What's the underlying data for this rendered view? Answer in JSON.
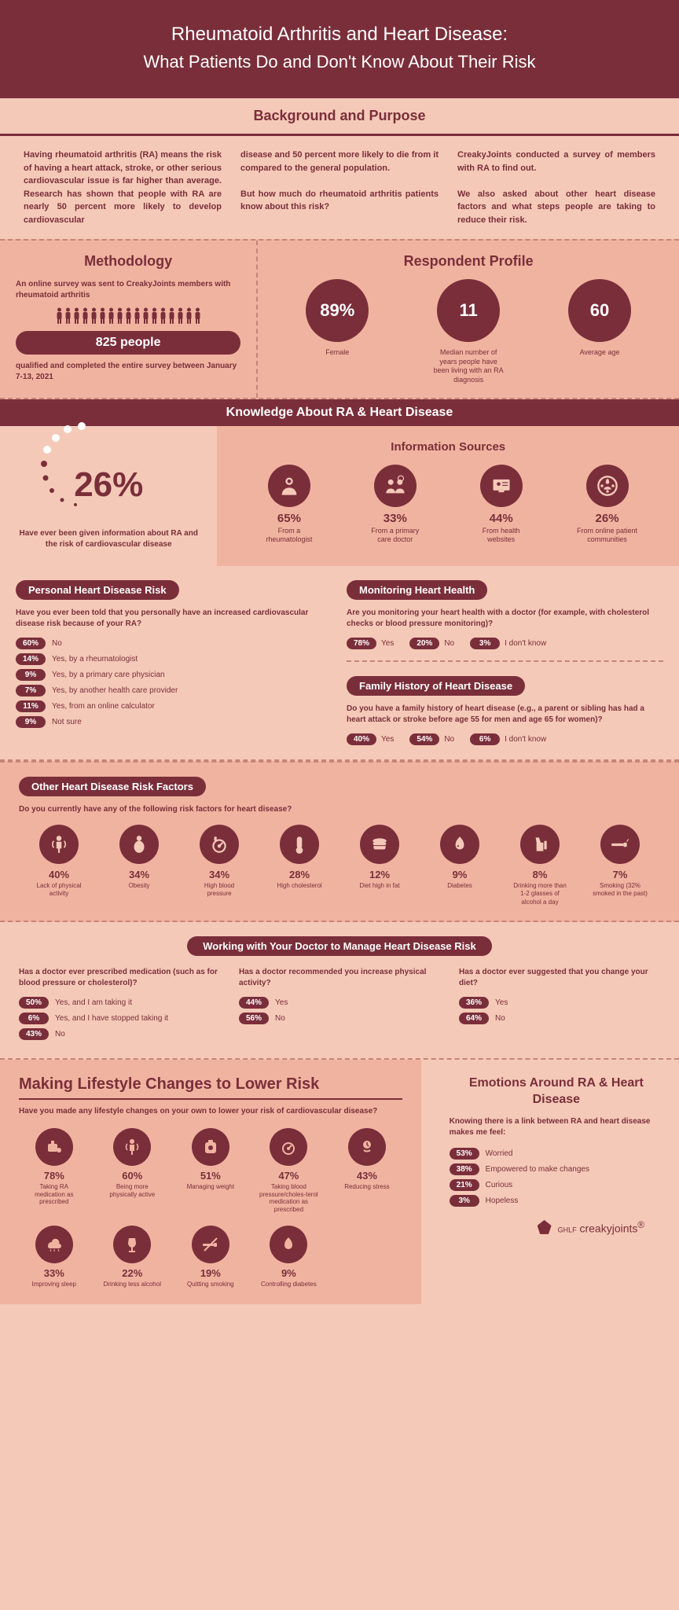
{
  "header": {
    "line1": "Rheumatoid Arthritis and Heart Disease:",
    "line2": "What Patients Do and Don't Know About Their Risk"
  },
  "background": {
    "title": "Background and Purpose",
    "col1": "Having rheumatoid arthritis (RA) means the risk of having a heart attack, stroke, or other serious cardiovascular issue is far higher than average. Research has shown that people with RA are nearly 50 percent more likely to develop cardiovascular",
    "col2": "disease and 50 percent more likely to die from it compared to the general population.\n\nBut how much do rheumatoid arthritis patients know about this risk?",
    "col3": "CreakyJoints conducted a survey of members with RA to find out.\n\nWe also asked about other heart disease factors and what steps people are taking to reduce their risk."
  },
  "methodology": {
    "title": "Methodology",
    "intro": "An online survey was sent to CreakyJoints members with rheumatoid arthritis",
    "count": "825 people",
    "note": "qualified and completed the entire survey between January 7-13, 2021"
  },
  "profile": {
    "title": "Respondent Profile",
    "stats": [
      {
        "value": "89%",
        "label": "Female"
      },
      {
        "value": "11",
        "label": "Median number of years people have been living with an RA diagnosis"
      },
      {
        "value": "60",
        "label": "Average age"
      }
    ]
  },
  "knowledge": {
    "title": "Knowledge About RA & Heart Disease",
    "main_pct": "26%",
    "main_text": "Have ever been given information about RA and the risk of cardiovascular disease",
    "sources_title": "Information Sources",
    "sources": [
      {
        "pct": "65%",
        "label": "From a rheumatologist"
      },
      {
        "pct": "33%",
        "label": "From a primary care doctor"
      },
      {
        "pct": "44%",
        "label": "From health websites"
      },
      {
        "pct": "26%",
        "label": "From online patient communities"
      }
    ]
  },
  "personal_risk": {
    "title": "Personal Heart Disease Risk",
    "question": "Have you ever been told that you personally have an increased cardiovascular disease risk because of your RA?",
    "items": [
      {
        "pct": "60%",
        "label": "No"
      },
      {
        "pct": "14%",
        "label": "Yes, by a rheumatologist"
      },
      {
        "pct": "9%",
        "label": "Yes, by a primary care physician"
      },
      {
        "pct": "7%",
        "label": "Yes, by another health care provider"
      },
      {
        "pct": "11%",
        "label": "Yes, from an online calculator"
      },
      {
        "pct": "9%",
        "label": "Not sure"
      }
    ]
  },
  "monitoring": {
    "title": "Monitoring Heart Health",
    "question": "Are you monitoring your heart health with a doctor (for example, with cholesterol checks or blood pressure monitoring)?",
    "items": [
      {
        "pct": "78%",
        "label": "Yes"
      },
      {
        "pct": "20%",
        "label": "No"
      },
      {
        "pct": "3%",
        "label": "I don't know"
      }
    ]
  },
  "family_history": {
    "title": "Family History of Heart Disease",
    "question": "Do you have a family history of heart disease (e.g., a parent or sibling has had a heart attack or stroke before age 55 for men and age 65 for women)?",
    "items": [
      {
        "pct": "40%",
        "label": "Yes"
      },
      {
        "pct": "54%",
        "label": "No"
      },
      {
        "pct": "6%",
        "label": "I don't know"
      }
    ]
  },
  "risk_factors": {
    "title": "Other Heart Disease Risk Factors",
    "question": "Do you currently have any of the following risk factors for heart disease?",
    "items": [
      {
        "pct": "40%",
        "label": "Lack of physical activity"
      },
      {
        "pct": "34%",
        "label": "Obesity"
      },
      {
        "pct": "34%",
        "label": "High blood pressure"
      },
      {
        "pct": "28%",
        "label": "High cholesterol"
      },
      {
        "pct": "12%",
        "label": "Diet high in fat"
      },
      {
        "pct": "9%",
        "label": "Diabetes"
      },
      {
        "pct": "8%",
        "label": "Drinking more than 1-2 glasses of alcohol a day"
      },
      {
        "pct": "7%",
        "label": "Smoking (32% smoked in the past)"
      }
    ]
  },
  "doctor": {
    "title": "Working with Your Doctor to Manage Heart Disease Risk",
    "cols": [
      {
        "question": "Has a doctor ever prescribed medication (such as for blood pressure or cholesterol)?",
        "items": [
          {
            "pct": "50%",
            "label": "Yes, and I am taking it"
          },
          {
            "pct": "6%",
            "label": "Yes, and I have stopped taking it"
          },
          {
            "pct": "43%",
            "label": "No"
          }
        ]
      },
      {
        "question": "Has a doctor recommended you increase physical activity?",
        "items": [
          {
            "pct": "44%",
            "label": "Yes"
          },
          {
            "pct": "56%",
            "label": "No"
          }
        ]
      },
      {
        "question": "Has a doctor ever suggested that you change your diet?",
        "items": [
          {
            "pct": "36%",
            "label": "Yes"
          },
          {
            "pct": "64%",
            "label": "No"
          }
        ]
      }
    ]
  },
  "lifestyle": {
    "title": "Making Lifestyle Changes to Lower Risk",
    "question": "Have you made any lifestyle changes on your own to lower your risk of cardiovascular disease?",
    "items": [
      {
        "pct": "78%",
        "label": "Taking RA medication as prescribed"
      },
      {
        "pct": "60%",
        "label": "Being more physically active"
      },
      {
        "pct": "51%",
        "label": "Managing weight"
      },
      {
        "pct": "47%",
        "label": "Taking blood pressure/choles-terol medication as prescribed"
      },
      {
        "pct": "43%",
        "label": "Reducing stress"
      },
      {
        "pct": "33%",
        "label": "Improving sleep"
      },
      {
        "pct": "22%",
        "label": "Drinking less alcohol"
      },
      {
        "pct": "19%",
        "label": "Quitting smoking"
      },
      {
        "pct": "9%",
        "label": "Controlling diabetes"
      }
    ]
  },
  "emotions": {
    "title": "Emotions Around RA & Heart Disease",
    "question": "Knowing there is a link between RA and heart disease makes me feel:",
    "items": [
      {
        "pct": "53%",
        "label": "Worried"
      },
      {
        "pct": "38%",
        "label": "Empowered to make changes"
      },
      {
        "pct": "21%",
        "label": "Curious"
      },
      {
        "pct": "3%",
        "label": "Hopeless"
      }
    ]
  },
  "footer": {
    "brand_prefix": "GHLF",
    "brand": "creakyjoints"
  }
}
